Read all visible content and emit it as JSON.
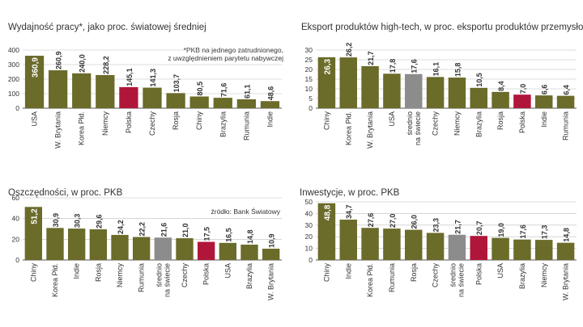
{
  "colors": {
    "bar": "#6b6b2a",
    "highlight": "#b0163a",
    "world": "#8c8c8c",
    "grid": "#bdbdbd",
    "axis": "#555555"
  },
  "chart_data": [
    {
      "type": "bar",
      "title": "Wydajność pracy*, jako proc. światowej średniej",
      "note": [
        "*PKB na jednego zatrudnionego,",
        "z uwzględnieniem parytetu nabywczej"
      ],
      "categories": [
        "USA",
        "W. Brytania",
        "Korea Płd.",
        "Niemcy",
        "Polska",
        "Czechy",
        "Rosja",
        "Chiny",
        "Brazylia",
        "Rumunia",
        "Indie"
      ],
      "values": [
        360.9,
        260.9,
        240.0,
        228.2,
        145.1,
        141.3,
        103.7,
        80.5,
        71.6,
        61.1,
        48.6
      ],
      "value_labels": [
        "360,9",
        "260,9",
        "240,0",
        "228,2",
        "145,1",
        "141,3",
        "103,7",
        "80,5",
        "71,6",
        "61,1",
        "48,6"
      ],
      "ylim": [
        0,
        400
      ],
      "yticks": [
        0,
        100,
        200,
        300,
        400
      ],
      "highlight": [
        "Polska"
      ],
      "world": []
    },
    {
      "type": "bar",
      "title": "Eksport produktów high-tech, w proc. eksportu produktów przemysłowych",
      "categories": [
        "Chiny",
        "Korea Płd.",
        "W. Brytania",
        "USA",
        "średnio na świecie",
        "Czechy",
        "Niemcy",
        "Brazylia",
        "Rosja",
        "Polska",
        "Indie",
        "Rumunia"
      ],
      "values": [
        26.3,
        26.2,
        21.7,
        17.8,
        17.6,
        16.1,
        15.8,
        10.5,
        8.4,
        7.0,
        6.6,
        6.4
      ],
      "value_labels": [
        "26,3",
        "26,2",
        "21,7",
        "17,8",
        "17,6",
        "16,1",
        "15,8",
        "10,5",
        "8,4",
        "7,0",
        "6,6",
        "6,4"
      ],
      "ylim": [
        0,
        30
      ],
      "yticks": [
        0,
        5,
        10,
        15,
        20,
        25,
        30
      ],
      "highlight": [
        "Polska"
      ],
      "world": [
        "średnio na świecie"
      ]
    },
    {
      "type": "bar",
      "title": "Oszczędności, w proc. PKB",
      "source": "źródło: Bank Światowy",
      "categories": [
        "Chiny",
        "Korea Płd.",
        "Indie",
        "Rosja",
        "Niemcy",
        "Rumunia",
        "średnio na świecie",
        "Czechy",
        "Polska",
        "USA",
        "Brazylia",
        "W. Brytania"
      ],
      "values": [
        51.2,
        30.9,
        30.3,
        29.6,
        24.2,
        22.2,
        21.6,
        21.0,
        17.5,
        16.5,
        14.8,
        10.9
      ],
      "value_labels": [
        "51,2",
        "30,9",
        "30,3",
        "29,6",
        "24,2",
        "22,2",
        "21,6",
        "21,0",
        "17,5",
        "16,5",
        "14,8",
        "10,9"
      ],
      "ylim": [
        0,
        60
      ],
      "yticks": [
        0,
        20,
        40,
        60
      ],
      "highlight": [
        "Polska"
      ],
      "world": [
        "średnio na świecie"
      ]
    },
    {
      "type": "bar",
      "title": "Inwestycje, w proc. PKB",
      "categories": [
        "Chiny",
        "Indie",
        "Korea Płd.",
        "Rumunia",
        "Rosja",
        "Czechy",
        "średnio na świecie",
        "Polska",
        "USA",
        "Brazylia",
        "Niemcy",
        "W. Brytania"
      ],
      "values": [
        48.8,
        34.7,
        27.6,
        27.0,
        26.0,
        23.3,
        21.7,
        20.7,
        19.0,
        17.6,
        17.3,
        14.8
      ],
      "value_labels": [
        "48,8",
        "34,7",
        "27,6",
        "27,0",
        "26,0",
        "23,3",
        "21,7",
        "20,7",
        "19,0",
        "17,6",
        "17,3",
        "14,8"
      ],
      "ylim": [
        0,
        50
      ],
      "yticks": [
        0,
        10,
        20,
        30,
        40,
        50
      ],
      "highlight": [
        "Polska"
      ],
      "world": [
        "średnio na świecie"
      ]
    }
  ]
}
